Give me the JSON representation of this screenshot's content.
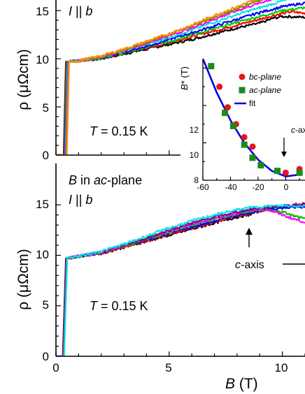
{
  "chart_data": [
    {
      "type": "line",
      "panel": "top",
      "ylabel": "ρ (μΩcm)",
      "ylim": [
        0,
        16
      ],
      "xlim": [
        0,
        11
      ],
      "yticks": [
        0,
        5,
        10,
        15
      ],
      "annotations": {
        "orientation": "I || b",
        "temperature": "T = 0.15 K"
      },
      "series": [
        {
          "color": "#000000",
          "x": [
            0,
            0.34,
            0.44,
            1,
            2,
            3,
            4,
            5,
            6,
            7,
            8,
            9,
            9.6,
            10,
            11
          ],
          "y": [
            0,
            0,
            9.7,
            9.8,
            10,
            10.5,
            11,
            11.5,
            12,
            12.6,
            13.2,
            13.7,
            14.2,
            14.4,
            14.3
          ]
        },
        {
          "color": "#ff0000",
          "x": [
            0,
            0.36,
            0.46,
            1,
            2,
            3,
            4,
            5,
            6,
            7,
            8,
            9,
            9.8,
            10.4,
            11
          ],
          "y": [
            0,
            0,
            9.7,
            9.8,
            10.1,
            10.6,
            11.1,
            11.7,
            12.3,
            12.9,
            13.5,
            14.1,
            14.6,
            14.9,
            14.7
          ]
        },
        {
          "color": "#00cc00",
          "x": [
            0,
            0.38,
            0.48,
            1,
            2,
            3,
            4,
            5,
            6,
            7,
            8,
            9,
            10,
            11
          ],
          "y": [
            0,
            0,
            9.7,
            9.8,
            10.1,
            10.6,
            11.2,
            11.8,
            12.5,
            13.1,
            13.8,
            14.4,
            15,
            15.3
          ]
        },
        {
          "color": "#0000ff",
          "x": [
            0,
            0.4,
            0.5,
            1,
            2,
            3,
            4,
            5,
            6,
            7,
            8,
            9,
            10,
            11
          ],
          "y": [
            0,
            0,
            9.7,
            9.8,
            10.1,
            10.7,
            11.3,
            12,
            12.7,
            13.4,
            14.1,
            14.8,
            15.4,
            15.8
          ]
        },
        {
          "color": "#00e5e5",
          "x": [
            0,
            0.42,
            0.52,
            1,
            2,
            3,
            4,
            5,
            6,
            7,
            8,
            9,
            10,
            11
          ],
          "y": [
            0,
            0,
            9.7,
            9.8,
            10.2,
            10.8,
            11.5,
            12.2,
            13,
            13.8,
            14.6,
            15.3,
            16,
            16.6
          ]
        },
        {
          "color": "#ff00ff",
          "x": [
            0,
            0.44,
            0.54,
            1,
            2,
            3,
            4,
            5,
            6,
            7,
            8,
            9,
            10,
            11
          ],
          "y": [
            0,
            0,
            9.7,
            9.8,
            10.2,
            10.9,
            11.6,
            12.4,
            13.2,
            14.1,
            15,
            15.8,
            16.5,
            17
          ]
        },
        {
          "color": "#808000",
          "x": [
            0,
            0.46,
            0.56,
            1,
            2,
            3,
            4,
            5,
            6,
            7,
            8,
            9,
            10,
            11
          ],
          "y": [
            0,
            0,
            9.7,
            9.8,
            10.2,
            10.9,
            11.7,
            12.5,
            13.4,
            14.3,
            15.2,
            16.1,
            16.9,
            17.5
          ]
        },
        {
          "color": "#ff8c00",
          "x": [
            0,
            0.48,
            0.58,
            1,
            2,
            3,
            4,
            5,
            6,
            7,
            8,
            9,
            10,
            11
          ],
          "y": [
            0,
            0,
            9.7,
            9.8,
            10.3,
            11,
            11.8,
            12.6,
            13.5,
            14.5,
            15.4,
            16.3,
            17.1,
            17.8
          ]
        }
      ]
    },
    {
      "type": "line",
      "panel": "bottom",
      "xlabel": "B (T)",
      "ylabel": "ρ (μΩcm)",
      "ylim": [
        0,
        16
      ],
      "xlim": [
        0,
        11
      ],
      "xticks": [
        0,
        5,
        10
      ],
      "yticks": [
        0,
        5,
        10,
        15
      ],
      "annotations": {
        "field": "B in ac-plane",
        "orientation": "I || b",
        "temperature": "T = 0.15 K",
        "arrow_label": "c-axis"
      },
      "series": [
        {
          "color": "#000000",
          "x": [
            0,
            0.3,
            0.44,
            1,
            2,
            3,
            4,
            5,
            6,
            7,
            8,
            8.5,
            9,
            9.5,
            10,
            11
          ],
          "y": [
            0,
            0,
            9.7,
            9.9,
            10.2,
            10.8,
            11.4,
            12,
            12.6,
            13.2,
            13.8,
            14,
            14.4,
            14.7,
            14.8,
            15
          ]
        },
        {
          "color": "#ff0000",
          "x": [
            0,
            0.31,
            0.45,
            1,
            2,
            3,
            4,
            5,
            6,
            7,
            8,
            8.5,
            9,
            9.5,
            10,
            11
          ],
          "y": [
            0,
            0,
            9.7,
            9.9,
            10.2,
            10.8,
            11.4,
            12.1,
            12.7,
            13.3,
            13.9,
            14.1,
            14.4,
            14.7,
            14.8,
            15
          ]
        },
        {
          "color": "#0000ff",
          "x": [
            0,
            0.32,
            0.46,
            1,
            2,
            3,
            4,
            5,
            6,
            7,
            8,
            8.5,
            9,
            9.5,
            10,
            11
          ],
          "y": [
            0,
            0,
            9.7,
            9.9,
            10.3,
            10.9,
            11.5,
            12.2,
            12.8,
            13.4,
            14,
            14.2,
            14.4,
            14.6,
            14.7,
            14.8
          ]
        },
        {
          "color": "#00c000",
          "x": [
            0,
            0.33,
            0.47,
            1,
            2,
            3,
            4,
            5,
            6,
            7,
            8,
            8.7,
            9.3,
            10,
            10.5,
            11
          ],
          "y": [
            0,
            0,
            9.7,
            9.9,
            10.3,
            10.9,
            11.6,
            12.3,
            13,
            13.6,
            14.1,
            14.4,
            14.5,
            14.3,
            13.9,
            13.6
          ]
        },
        {
          "color": "#ff00ff",
          "x": [
            0,
            0.34,
            0.48,
            1,
            2,
            3,
            4,
            5,
            6,
            7,
            8,
            9,
            9.4,
            10,
            10.5,
            11
          ],
          "y": [
            0,
            0,
            9.7,
            9.9,
            10.3,
            11,
            11.7,
            12.4,
            13.1,
            13.7,
            14.2,
            14.6,
            14.5,
            14,
            13.6,
            13.3
          ]
        },
        {
          "color": "#800080",
          "x": [
            0,
            0.35,
            0.49,
            1,
            2,
            3,
            4,
            5,
            6,
            7,
            8,
            8.7,
            9.2,
            10,
            11
          ],
          "y": [
            0,
            0,
            9.7,
            9.9,
            10.3,
            11,
            11.7,
            12.5,
            13.2,
            13.8,
            14.3,
            14.6,
            14.7,
            14.9,
            15.1
          ]
        },
        {
          "color": "#00e5e5",
          "x": [
            0,
            0.36,
            0.5,
            1,
            2,
            3,
            4,
            5,
            6,
            7,
            8,
            8.5,
            9,
            9.5,
            10,
            11
          ],
          "y": [
            0,
            0,
            9.8,
            9.9,
            10.4,
            11.1,
            11.9,
            12.7,
            13.4,
            14,
            14.5,
            14.7,
            14.8,
            14.9,
            14.9,
            14.9
          ]
        }
      ]
    },
    {
      "type": "scatter",
      "panel": "inset",
      "ylabel": "B* (T)",
      "xlim": [
        -60,
        12
      ],
      "ylim": [
        8,
        14.4
      ],
      "xticks": [
        -60,
        -40,
        -20,
        0
      ],
      "yticks": [
        8,
        10,
        12
      ],
      "legend_placement": "top-right",
      "arrow_label": "c-axis",
      "series": [
        {
          "name": "bc-plane",
          "marker": "circle",
          "color": "#e8141c",
          "x": [
            -48,
            -42,
            -36,
            -30,
            -24,
            0,
            10
          ],
          "y": [
            13,
            11.9,
            11,
            10.3,
            9.8,
            8.4,
            8.6
          ]
        },
        {
          "name": "ac-plane",
          "marker": "square",
          "color": "#1a8c1a",
          "x": [
            -54,
            -44,
            -38,
            -30,
            -24,
            -18,
            -6,
            10
          ],
          "y": [
            14.1,
            11.6,
            10.9,
            9.9,
            9.2,
            8.8,
            8.5,
            8.4
          ]
        },
        {
          "name": "fit",
          "marker": "line",
          "color": "#0000e6",
          "x": [
            -60,
            -50,
            -40,
            -30,
            -20,
            -10,
            0,
            10,
            12
          ],
          "y": [
            14.5,
            12.7,
            11.2,
            10,
            9.1,
            8.5,
            8.2,
            8.3,
            8.4
          ]
        }
      ]
    }
  ],
  "labels": {
    "top": {
      "yticks": [
        "0",
        "5",
        "10",
        "15"
      ],
      "ylabel": "ρ (μΩcm)",
      "i_label_i": "I",
      "i_label_rest": " || ",
      "i_label_b": "b",
      "temp_t": "T",
      "temp_rest": " = 0.15 K"
    },
    "bottom": {
      "yticks": [
        "0",
        "5",
        "10",
        "15"
      ],
      "xticks": [
        "0",
        "5",
        "10"
      ],
      "ylabel": "ρ (μΩcm)",
      "xlabel_b": "B",
      "xlabel_rest": " (T)",
      "field_b": "B",
      "field_in": " in ",
      "field_ac": "ac",
      "field_plane": "-plane",
      "i_label_i": "I",
      "i_label_rest": " || ",
      "i_label_b": "b",
      "temp_t": "T",
      "temp_rest": " = 0.15 K",
      "arrow_c": "c",
      "arrow_rest": "-axis"
    },
    "inset": {
      "xticks": [
        "-60",
        "-40",
        "-20",
        "0"
      ],
      "yticks": [
        "8",
        "10",
        "12"
      ],
      "ylabel_b": "B",
      "ylabel_star": "*",
      "ylabel_rest": " (T)",
      "legend_bc": "bc-plane",
      "legend_ac": "ac-plane",
      "legend_fit": "fit",
      "arrow_c": "c",
      "arrow_rest": "-axis"
    }
  }
}
